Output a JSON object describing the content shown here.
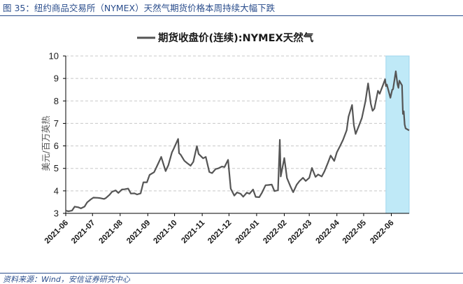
{
  "figure": {
    "title": "图 35：纽约商品交易所（NYMEX）天然气期货价格本周持续大幅下跌",
    "source": "资料来源：Wind，安信证券研究中心"
  },
  "colors": {
    "title_blue": "#2a4d8c",
    "line": "#555555",
    "highlight": "#bfe9f7",
    "highlight_border": "#9fd5ee",
    "grid": "#c8c8c8"
  },
  "chart_data": {
    "type": "line",
    "title": "",
    "ylabel": "美元/百万英热",
    "xlabel": "",
    "ylim": [
      3,
      10
    ],
    "yticks": [
      3,
      4,
      5,
      6,
      7,
      8,
      9,
      10
    ],
    "xlim": [
      "2021-06-01",
      "2022-06-21"
    ],
    "xticks": [
      "2021-06",
      "2021-07",
      "2021-08",
      "2021-09",
      "2021-10",
      "2021-11",
      "2021-12",
      "2022-01",
      "2022-02",
      "2022-03",
      "2022-04",
      "2022-05",
      "2022-06"
    ],
    "grid": "horizontal-dashed",
    "legend": "top-center",
    "highlight_range": [
      "2022-05-26",
      "2022-06-21"
    ],
    "series": [
      {
        "name": "期货收盘价(连续):NYMEX天然气",
        "points": [
          [
            "2021-06-01",
            3.12
          ],
          [
            "2021-06-04",
            3.09
          ],
          [
            "2021-06-08",
            3.12
          ],
          [
            "2021-06-11",
            3.3
          ],
          [
            "2021-06-15",
            3.27
          ],
          [
            "2021-06-18",
            3.22
          ],
          [
            "2021-06-22",
            3.3
          ],
          [
            "2021-06-25",
            3.49
          ],
          [
            "2021-06-29",
            3.62
          ],
          [
            "2021-07-02",
            3.7
          ],
          [
            "2021-07-07",
            3.69
          ],
          [
            "2021-07-09",
            3.68
          ],
          [
            "2021-07-14",
            3.64
          ],
          [
            "2021-07-16",
            3.68
          ],
          [
            "2021-07-20",
            3.82
          ],
          [
            "2021-07-23",
            3.96
          ],
          [
            "2021-07-27",
            4.02
          ],
          [
            "2021-07-30",
            3.91
          ],
          [
            "2021-08-03",
            4.06
          ],
          [
            "2021-08-06",
            4.07
          ],
          [
            "2021-08-10",
            4.1
          ],
          [
            "2021-08-13",
            3.88
          ],
          [
            "2021-08-17",
            3.89
          ],
          [
            "2021-08-20",
            3.84
          ],
          [
            "2021-08-24",
            3.89
          ],
          [
            "2021-08-27",
            4.38
          ],
          [
            "2021-08-31",
            4.38
          ],
          [
            "2021-09-03",
            4.71
          ],
          [
            "2021-09-08",
            4.83
          ],
          [
            "2021-09-10",
            4.99
          ],
          [
            "2021-09-14",
            5.33
          ],
          [
            "2021-09-16",
            5.51
          ],
          [
            "2021-09-21",
            4.88
          ],
          [
            "2021-09-24",
            5.14
          ],
          [
            "2021-09-28",
            5.71
          ],
          [
            "2021-09-30",
            5.87
          ],
          [
            "2021-10-05",
            6.31
          ],
          [
            "2021-10-06",
            5.68
          ],
          [
            "2021-10-08",
            5.6
          ],
          [
            "2021-10-12",
            5.34
          ],
          [
            "2021-10-15",
            5.24
          ],
          [
            "2021-10-19",
            5.12
          ],
          [
            "2021-10-22",
            5.29
          ],
          [
            "2021-10-26",
            5.99
          ],
          [
            "2021-10-28",
            5.64
          ],
          [
            "2021-11-02",
            5.45
          ],
          [
            "2021-11-05",
            5.51
          ],
          [
            "2021-11-09",
            4.84
          ],
          [
            "2021-11-12",
            4.79
          ],
          [
            "2021-11-16",
            4.97
          ],
          [
            "2021-11-19",
            5.0
          ],
          [
            "2021-11-23",
            5.08
          ],
          [
            "2021-11-26",
            5.06
          ],
          [
            "2021-11-30",
            5.38
          ],
          [
            "2021-12-03",
            4.1
          ],
          [
            "2021-12-07",
            3.79
          ],
          [
            "2021-12-10",
            3.93
          ],
          [
            "2021-12-14",
            3.87
          ],
          [
            "2021-12-17",
            3.74
          ],
          [
            "2021-12-21",
            3.92
          ],
          [
            "2021-12-24",
            3.87
          ],
          [
            "2021-12-28",
            4.06
          ],
          [
            "2021-12-31",
            3.73
          ],
          [
            "2022-01-04",
            3.72
          ],
          [
            "2022-01-07",
            3.92
          ],
          [
            "2022-01-11",
            4.25
          ],
          [
            "2022-01-14",
            4.26
          ],
          [
            "2022-01-18",
            4.28
          ],
          [
            "2022-01-21",
            3.99
          ],
          [
            "2022-01-25",
            4.03
          ],
          [
            "2022-01-27",
            6.27
          ],
          [
            "2022-01-28",
            4.64
          ],
          [
            "2022-02-01",
            5.46
          ],
          [
            "2022-02-04",
            4.57
          ],
          [
            "2022-02-08",
            4.19
          ],
          [
            "2022-02-11",
            3.94
          ],
          [
            "2022-02-15",
            4.28
          ],
          [
            "2022-02-18",
            4.43
          ],
          [
            "2022-02-22",
            4.58
          ],
          [
            "2022-02-25",
            4.44
          ],
          [
            "2022-03-01",
            4.58
          ],
          [
            "2022-03-04",
            5.02
          ],
          [
            "2022-03-08",
            4.62
          ],
          [
            "2022-03-11",
            4.73
          ],
          [
            "2022-03-15",
            4.64
          ],
          [
            "2022-03-18",
            4.86
          ],
          [
            "2022-03-22",
            5.25
          ],
          [
            "2022-03-25",
            5.57
          ],
          [
            "2022-03-29",
            5.33
          ],
          [
            "2022-04-01",
            5.72
          ],
          [
            "2022-04-05",
            6.03
          ],
          [
            "2022-04-08",
            6.28
          ],
          [
            "2022-04-12",
            6.7
          ],
          [
            "2022-04-14",
            7.3
          ],
          [
            "2022-04-18",
            7.82
          ],
          [
            "2022-04-20",
            6.93
          ],
          [
            "2022-04-22",
            6.53
          ],
          [
            "2022-04-26",
            6.93
          ],
          [
            "2022-04-29",
            7.24
          ],
          [
            "2022-05-03",
            7.98
          ],
          [
            "2022-05-06",
            8.78
          ],
          [
            "2022-05-09",
            7.87
          ],
          [
            "2022-05-11",
            7.56
          ],
          [
            "2022-05-13",
            7.66
          ],
          [
            "2022-05-17",
            8.45
          ],
          [
            "2022-05-19",
            8.32
          ],
          [
            "2022-05-23",
            8.74
          ],
          [
            "2022-05-25",
            8.96
          ],
          [
            "2022-05-26",
            8.66
          ],
          [
            "2022-05-27",
            8.73
          ],
          [
            "2022-05-31",
            8.14
          ],
          [
            "2022-06-02",
            8.5
          ],
          [
            "2022-06-03",
            8.52
          ],
          [
            "2022-06-06",
            9.32
          ],
          [
            "2022-06-08",
            8.73
          ],
          [
            "2022-06-09",
            8.58
          ],
          [
            "2022-06-10",
            8.9
          ],
          [
            "2022-06-13",
            8.69
          ],
          [
            "2022-06-14",
            7.42
          ],
          [
            "2022-06-15",
            7.54
          ],
          [
            "2022-06-16",
            6.95
          ],
          [
            "2022-06-17",
            6.78
          ],
          [
            "2022-06-21",
            6.69
          ]
        ]
      }
    ]
  }
}
